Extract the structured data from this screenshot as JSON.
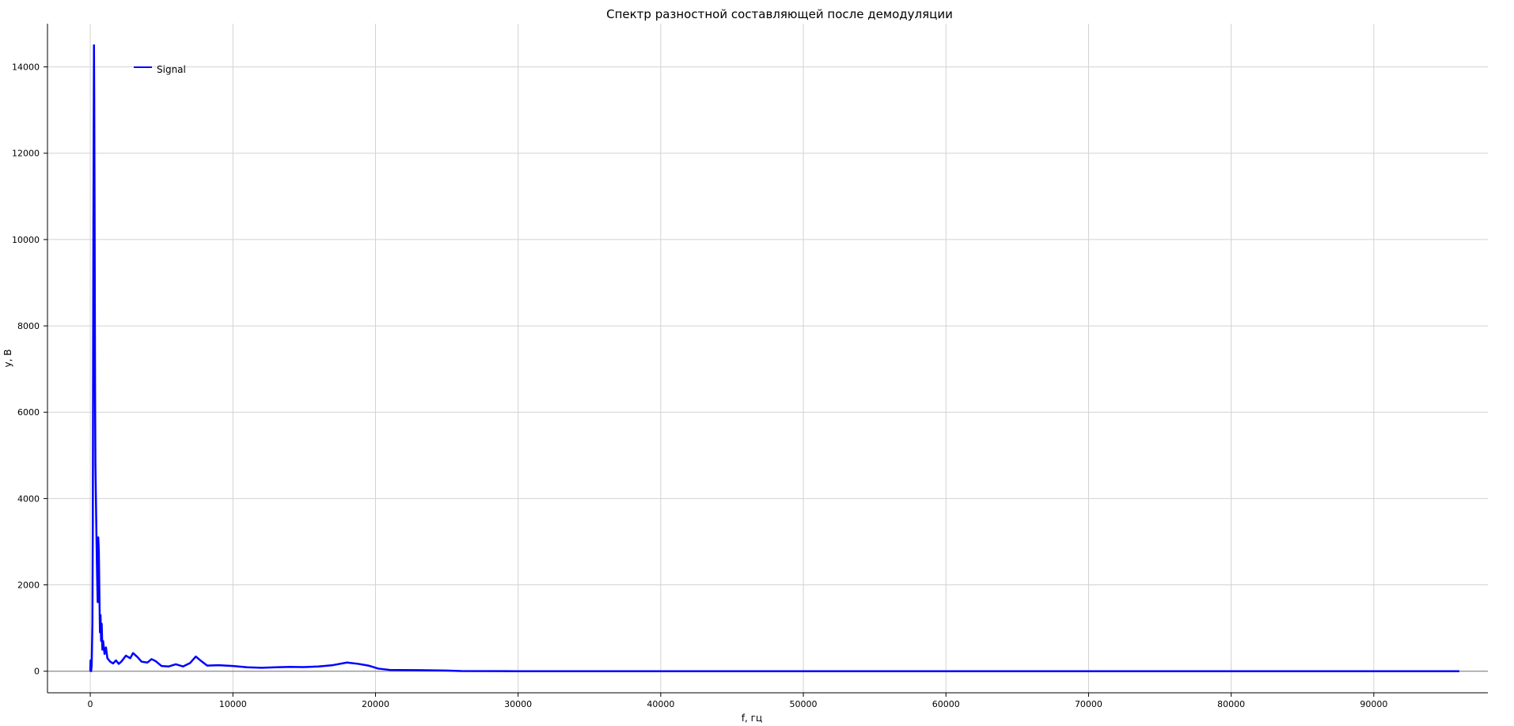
{
  "chart_data": {
    "type": "line",
    "title": "Спектр разностной составляющей после демодуляции",
    "xlabel": "f, гц",
    "ylabel": "y, В",
    "xlim": [
      -3000,
      98000
    ],
    "ylim": [
      -500,
      15000
    ],
    "x_ticks": [
      0,
      10000,
      20000,
      30000,
      40000,
      50000,
      60000,
      70000,
      80000,
      90000
    ],
    "y_ticks": [
      0,
      2000,
      4000,
      6000,
      8000,
      10000,
      12000,
      14000
    ],
    "grid": true,
    "legend_position": "top-left",
    "series": [
      {
        "name": "Signal",
        "color": "#0000ff",
        "points": [
          [
            0,
            0
          ],
          [
            20,
            250
          ],
          [
            40,
            80
          ],
          [
            60,
            0
          ],
          [
            100,
            150
          ],
          [
            150,
            1100
          ],
          [
            180,
            3500
          ],
          [
            200,
            7200
          ],
          [
            220,
            10300
          ],
          [
            240,
            12500
          ],
          [
            260,
            14500
          ],
          [
            280,
            13200
          ],
          [
            300,
            11000
          ],
          [
            320,
            8500
          ],
          [
            340,
            6200
          ],
          [
            360,
            4800
          ],
          [
            400,
            3900
          ],
          [
            440,
            3000
          ],
          [
            480,
            2200
          ],
          [
            520,
            1600
          ],
          [
            560,
            3100
          ],
          [
            600,
            2800
          ],
          [
            640,
            1800
          ],
          [
            680,
            900
          ],
          [
            720,
            1300
          ],
          [
            760,
            700
          ],
          [
            800,
            1100
          ],
          [
            850,
            500
          ],
          [
            900,
            700
          ],
          [
            1000,
            400
          ],
          [
            1100,
            550
          ],
          [
            1200,
            300
          ],
          [
            1400,
            220
          ],
          [
            1600,
            180
          ],
          [
            1800,
            250
          ],
          [
            2000,
            170
          ],
          [
            2200,
            230
          ],
          [
            2500,
            360
          ],
          [
            2800,
            300
          ],
          [
            3000,
            420
          ],
          [
            3300,
            330
          ],
          [
            3600,
            220
          ],
          [
            4000,
            200
          ],
          [
            4300,
            280
          ],
          [
            4600,
            230
          ],
          [
            5000,
            120
          ],
          [
            5500,
            110
          ],
          [
            6000,
            160
          ],
          [
            6500,
            110
          ],
          [
            7000,
            190
          ],
          [
            7400,
            340
          ],
          [
            7800,
            230
          ],
          [
            8200,
            130
          ],
          [
            9000,
            140
          ],
          [
            10000,
            120
          ],
          [
            11000,
            90
          ],
          [
            12000,
            80
          ],
          [
            13000,
            90
          ],
          [
            14000,
            100
          ],
          [
            15000,
            95
          ],
          [
            16000,
            110
          ],
          [
            17000,
            140
          ],
          [
            18000,
            200
          ],
          [
            18800,
            170
          ],
          [
            19500,
            130
          ],
          [
            20200,
            60
          ],
          [
            21000,
            30
          ],
          [
            23000,
            25
          ],
          [
            25000,
            15
          ],
          [
            26000,
            5
          ],
          [
            30000,
            0
          ],
          [
            40000,
            0
          ],
          [
            50000,
            0
          ],
          [
            60000,
            0
          ],
          [
            70000,
            0
          ],
          [
            80000,
            0
          ],
          [
            90000,
            0
          ],
          [
            96000,
            0
          ]
        ]
      }
    ]
  }
}
